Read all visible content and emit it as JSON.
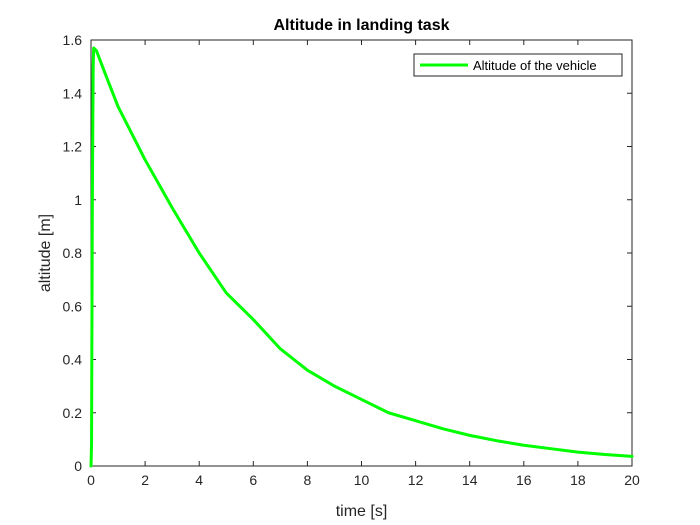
{
  "chart_data": {
    "type": "line",
    "title": "Altitude in landing task",
    "xlabel": "time [s]",
    "ylabel": "altitude [m]",
    "xlim": [
      0,
      20
    ],
    "ylim": [
      0,
      1.6
    ],
    "xticks": [
      0,
      2,
      4,
      6,
      8,
      10,
      12,
      14,
      16,
      18,
      20
    ],
    "yticks": [
      0,
      0.2,
      0.4,
      0.6,
      0.8,
      1,
      1.2,
      1.4,
      1.6
    ],
    "grid": false,
    "legend_position": "top-right",
    "series": [
      {
        "name": "Altitude of the vehicle",
        "color": "#00ff00",
        "x": [
          0,
          0.02,
          0.05,
          0.08,
          0.1,
          0.2,
          0.5,
          1,
          1.5,
          2,
          2.5,
          3,
          4,
          5,
          6,
          7,
          8,
          9,
          10,
          11,
          12,
          13,
          14,
          15,
          16,
          17,
          18,
          19,
          20
        ],
        "y": [
          0,
          0.08,
          1.0,
          1.5,
          1.57,
          1.56,
          1.48,
          1.35,
          1.25,
          1.15,
          1.06,
          0.97,
          0.8,
          0.65,
          0.55,
          0.44,
          0.36,
          0.3,
          0.25,
          0.2,
          0.17,
          0.14,
          0.115,
          0.095,
          0.078,
          0.065,
          0.052,
          0.043,
          0.036
        ]
      }
    ]
  }
}
